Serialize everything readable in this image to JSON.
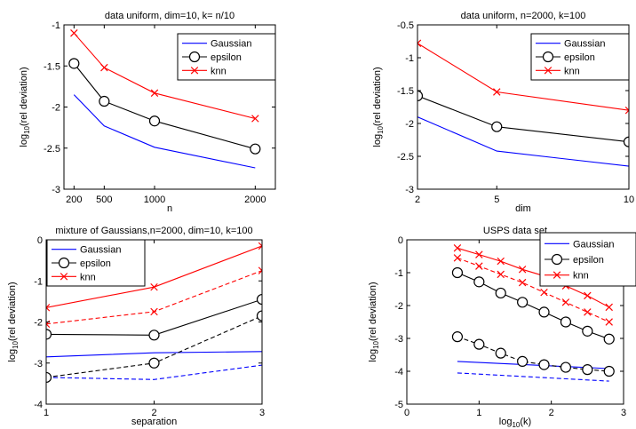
{
  "chart_data": [
    {
      "type": "line",
      "title": "data uniform, dim=10, k= n/10",
      "xlabel": "n",
      "ylabel": "log10(rel deviation)",
      "xlim": [
        100,
        2200
      ],
      "ylim": [
        -3,
        -1
      ],
      "xticks": [
        200,
        500,
        1000,
        2000
      ],
      "xtick_labels": [
        "200",
        "500",
        "1000",
        "2000"
      ],
      "yticks": [
        -3,
        -2.5,
        -2,
        -1.5,
        -1
      ],
      "ytick_labels": [
        "-3",
        "-2.5",
        "-2",
        "-1.5",
        "-1"
      ],
      "legend": "top-right",
      "series": [
        {
          "name": "Gaussian",
          "color": "#0000ff",
          "marker": "none",
          "dash": "solid",
          "x": [
            200,
            500,
            1000,
            2000
          ],
          "values": [
            -1.85,
            -2.23,
            -2.49,
            -2.74
          ]
        },
        {
          "name": "epsilon",
          "color": "#000000",
          "marker": "circle",
          "dash": "solid",
          "x": [
            200,
            500,
            1000,
            2000
          ],
          "values": [
            -1.47,
            -1.93,
            -2.17,
            -2.51
          ]
        },
        {
          "name": "knn",
          "color": "#ff0000",
          "marker": "x",
          "dash": "solid",
          "x": [
            200,
            500,
            1000,
            2000
          ],
          "values": [
            -1.1,
            -1.52,
            -1.83,
            -2.14
          ]
        }
      ]
    },
    {
      "type": "line",
      "title": "data uniform, n=2000, k=100",
      "xlabel": "dim",
      "ylabel": "log10(rel deviation)",
      "xlim": [
        2,
        10
      ],
      "ylim": [
        -3,
        -0.5
      ],
      "xticks": [
        2,
        5,
        10
      ],
      "xtick_labels": [
        "2",
        "5",
        "10"
      ],
      "yticks": [
        -3,
        -2.5,
        -2,
        -1.5,
        -1,
        -0.5
      ],
      "ytick_labels": [
        "-3",
        "-2.5",
        "-2",
        "-1.5",
        "-1",
        "-0.5"
      ],
      "legend": "top-right",
      "series": [
        {
          "name": "Gaussian",
          "color": "#0000ff",
          "marker": "none",
          "dash": "solid",
          "x": [
            2,
            5,
            10
          ],
          "values": [
            -1.9,
            -2.42,
            -2.65
          ]
        },
        {
          "name": "epsilon",
          "color": "#000000",
          "marker": "circle",
          "dash": "solid",
          "x": [
            2,
            5,
            10
          ],
          "values": [
            -1.58,
            -2.05,
            -2.28
          ]
        },
        {
          "name": "knn",
          "color": "#ff0000",
          "marker": "x",
          "dash": "solid",
          "x": [
            2,
            5,
            10
          ],
          "values": [
            -0.78,
            -1.52,
            -1.8
          ]
        }
      ]
    },
    {
      "type": "line",
      "title": "mixture of Gaussians,n=2000, dim=10, k=100",
      "xlabel": "separation",
      "ylabel": "log10(rel deviation)",
      "xlim": [
        1,
        3
      ],
      "ylim": [
        -4,
        0
      ],
      "xticks": [
        1,
        2,
        3
      ],
      "xtick_labels": [
        "1",
        "2",
        "3"
      ],
      "yticks": [
        -4,
        -3,
        -2,
        -1,
        0
      ],
      "ytick_labels": [
        "-4",
        "-3",
        "-2",
        "-1",
        "0"
      ],
      "legend": "top-left",
      "series": [
        {
          "name": "Gaussian",
          "color": "#0000ff",
          "marker": "none",
          "dash": "solid",
          "x": [
            1,
            2,
            3
          ],
          "values": [
            -2.85,
            -2.75,
            -2.72
          ]
        },
        {
          "name": "epsilon",
          "color": "#000000",
          "marker": "circle",
          "dash": "solid",
          "x": [
            1,
            2,
            3
          ],
          "values": [
            -2.3,
            -2.32,
            -1.45
          ]
        },
        {
          "name": "knn",
          "color": "#ff0000",
          "marker": "x",
          "dash": "solid",
          "x": [
            1,
            2,
            3
          ],
          "values": [
            -1.65,
            -1.15,
            -0.15
          ]
        },
        {
          "name": "",
          "color": "#0000ff",
          "marker": "none",
          "dash": "dashed",
          "x": [
            1,
            2,
            3
          ],
          "values": [
            -3.35,
            -3.4,
            -3.05
          ]
        },
        {
          "name": "",
          "color": "#000000",
          "marker": "circle",
          "dash": "dashed",
          "x": [
            1,
            2,
            3
          ],
          "values": [
            -3.35,
            -3.0,
            -1.85
          ]
        },
        {
          "name": "",
          "color": "#ff0000",
          "marker": "x",
          "dash": "dashed",
          "x": [
            1,
            2,
            3
          ],
          "values": [
            -2.05,
            -1.75,
            -0.75
          ]
        }
      ]
    },
    {
      "type": "line",
      "title": "USPS data set",
      "xlabel": "log10(k)",
      "ylabel": "log10(rel deviation)",
      "xlim": [
        0,
        3
      ],
      "ylim": [
        -5,
        0
      ],
      "xticks": [
        0,
        1,
        2,
        3
      ],
      "xtick_labels": [
        "0",
        "1",
        "2",
        "3"
      ],
      "yticks": [
        -5,
        -4,
        -3,
        -2,
        -1,
        0
      ],
      "ytick_labels": [
        "-5",
        "-4",
        "-3",
        "-2",
        "-1",
        "0"
      ],
      "legend": "top-right",
      "series": [
        {
          "name": "Gaussian",
          "color": "#0000ff",
          "marker": "none",
          "dash": "solid",
          "x": [
            0.7,
            2.8
          ],
          "values": [
            -3.7,
            -3.92
          ]
        },
        {
          "name": "epsilon",
          "color": "#000000",
          "marker": "circle",
          "dash": "solid",
          "x": [
            0.7,
            1.0,
            1.3,
            1.6,
            1.9,
            2.2,
            2.5,
            2.8
          ],
          "values": [
            -1.0,
            -1.28,
            -1.62,
            -1.9,
            -2.2,
            -2.5,
            -2.78,
            -3.02
          ]
        },
        {
          "name": "knn",
          "color": "#ff0000",
          "marker": "x",
          "dash": "solid",
          "x": [
            0.7,
            1.0,
            1.3,
            1.6,
            1.9,
            2.2,
            2.5,
            2.8
          ],
          "values": [
            -0.25,
            -0.45,
            -0.65,
            -0.9,
            -1.1,
            -1.4,
            -1.7,
            -2.05
          ]
        },
        {
          "name": "",
          "color": "#0000ff",
          "marker": "none",
          "dash": "dashed",
          "x": [
            0.7,
            2.8
          ],
          "values": [
            -4.05,
            -4.3
          ]
        },
        {
          "name": "",
          "color": "#000000",
          "marker": "circle",
          "dash": "dashed",
          "x": [
            0.7,
            1.0,
            1.3,
            1.6,
            1.9,
            2.2,
            2.5,
            2.8
          ],
          "values": [
            -2.95,
            -3.18,
            -3.45,
            -3.7,
            -3.8,
            -3.88,
            -3.95,
            -4.0
          ]
        },
        {
          "name": "",
          "color": "#ff0000",
          "marker": "x",
          "dash": "dashed",
          "x": [
            0.7,
            1.0,
            1.3,
            1.6,
            1.9,
            2.2,
            2.5,
            2.8
          ],
          "values": [
            -0.55,
            -0.8,
            -1.05,
            -1.3,
            -1.6,
            -1.9,
            -2.2,
            -2.5
          ]
        }
      ]
    }
  ]
}
